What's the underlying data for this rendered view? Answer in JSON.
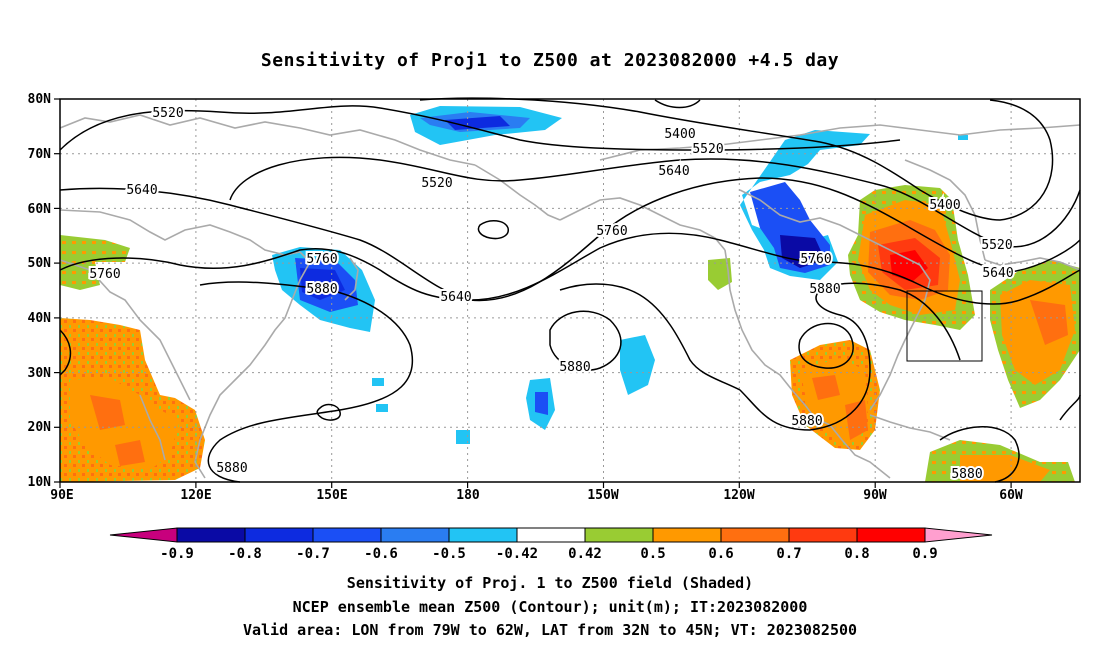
{
  "title": "Sensitivity of Proj1 to Z500 at 2023082000 +4.5 day",
  "axes": {
    "lat_ticks": [
      "80N",
      "70N",
      "60N",
      "50N",
      "40N",
      "30N",
      "20N",
      "10N"
    ],
    "lon_ticks": [
      "90E",
      "120E",
      "150E",
      "180",
      "150W",
      "120W",
      "90W",
      "60W"
    ]
  },
  "contours": {
    "levels": [
      "5400",
      "5520",
      "5640",
      "5760",
      "5880"
    ],
    "labels": [
      "5520",
      "5400",
      "5520",
      "5640",
      "5520",
      "5640",
      "5400",
      "5520",
      "5640",
      "5760",
      "5760",
      "5880",
      "5760",
      "5640",
      "5760",
      "5880",
      "5880",
      "5880",
      "5880",
      "5880"
    ]
  },
  "colorbar": {
    "labels": [
      "-0.9",
      "-0.8",
      "-0.7",
      "-0.6",
      "-0.5",
      "-0.42",
      "0.42",
      "0.5",
      "0.6",
      "0.7",
      "0.8",
      "0.9"
    ],
    "colors": [
      "#c8007d",
      "#0a0aa5",
      "#0d2be0",
      "#1b4ff5",
      "#2a7df2",
      "#22c4f4",
      "#ffffff",
      "#99cc33",
      "#ff9900",
      "#ff6f10",
      "#ff3a10",
      "#ff0000",
      "#ff9fcf"
    ]
  },
  "valid_area": {
    "lon": [
      "79W",
      "62W"
    ],
    "lat": [
      "32N",
      "45N"
    ]
  },
  "captions": {
    "line1": "Sensitivity of Proj. 1 to Z500 field (Shaded)",
    "line2": "NCEP ensemble mean Z500 (Contour); unit(m); IT:2023082000",
    "line3": "Valid area: LON from 79W to 62W, LAT from 32N to 45N; VT: 2023082500"
  }
}
